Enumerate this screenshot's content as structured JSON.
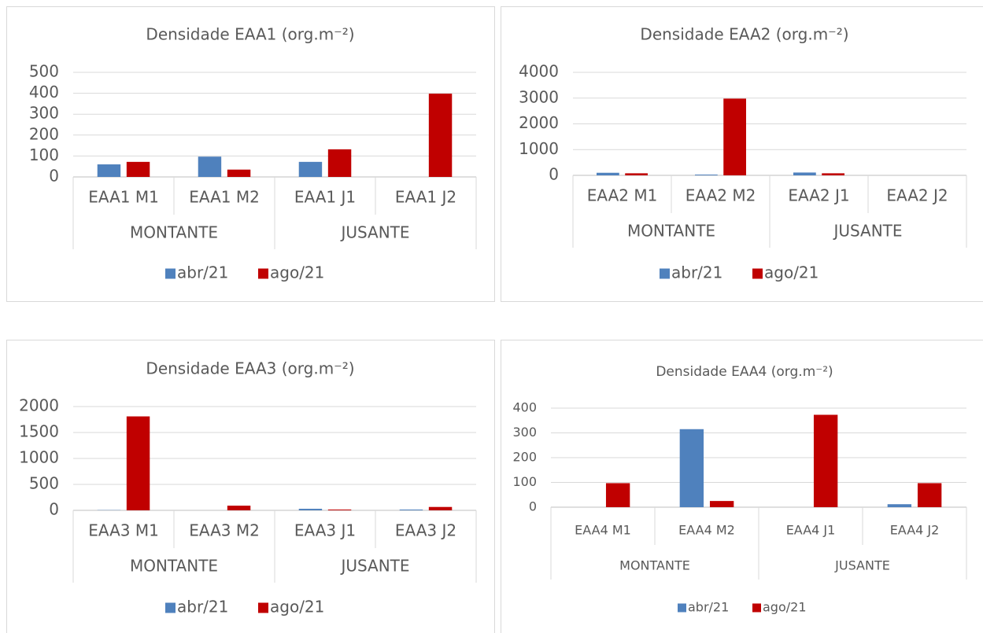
{
  "chart_data": [
    {
      "type": "bar",
      "title": "Densidade EAA1 (org.m⁻²)",
      "categories": [
        "EAA1 M1",
        "EAA1 M2",
        "EAA1 J1",
        "EAA1 J2"
      ],
      "groups": [
        "MONTANTE",
        "JUSANTE"
      ],
      "series": [
        {
          "name": "abr/21",
          "color": "#4f81bd",
          "values": [
            60,
            97,
            72,
            0
          ]
        },
        {
          "name": "ago/21",
          "color": "#c00000",
          "values": [
            72,
            35,
            132,
            398
          ]
        }
      ],
      "ylim": [
        0,
        500
      ],
      "yticks": [
        0,
        100,
        200,
        300,
        400,
        500
      ],
      "grid": true,
      "legend": "bottom"
    },
    {
      "type": "bar",
      "title": "Densidade EAA2 (org.m⁻²)",
      "categories": [
        "EAA2 M1",
        "EAA2 M2",
        "EAA2 J1",
        "EAA2 J2"
      ],
      "groups": [
        "MONTANTE",
        "JUSANTE"
      ],
      "series": [
        {
          "name": "abr/21",
          "color": "#4f81bd",
          "values": [
            100,
            30,
            110,
            0
          ]
        },
        {
          "name": "ago/21",
          "color": "#c00000",
          "values": [
            80,
            2980,
            80,
            0
          ]
        }
      ],
      "ylim": [
        0,
        4000
      ],
      "yticks": [
        0,
        1000,
        2000,
        3000,
        4000
      ],
      "grid": true,
      "legend": "bottom"
    },
    {
      "type": "bar",
      "title": "Densidade EAA3 (org.m⁻²)",
      "categories": [
        "EAA3 M1",
        "EAA3 M2",
        "EAA3 J1",
        "EAA3 J2"
      ],
      "groups": [
        "MONTANTE",
        "JUSANTE"
      ],
      "series": [
        {
          "name": "abr/21",
          "color": "#4f81bd",
          "values": [
            5,
            0,
            30,
            15
          ]
        },
        {
          "name": "ago/21",
          "color": "#c00000",
          "values": [
            1810,
            90,
            15,
            65
          ]
        }
      ],
      "ylim": [
        0,
        2000
      ],
      "yticks": [
        0,
        500,
        1000,
        1500,
        2000
      ],
      "grid": true,
      "legend": "bottom"
    },
    {
      "type": "bar",
      "title": "Densidade EAA4 (org.m⁻²)",
      "categories": [
        "EAA4 M1",
        "EAA4 M2",
        "EAA4 J1",
        "EAA4 J2"
      ],
      "groups": [
        "MONTANTE",
        "JUSANTE"
      ],
      "series": [
        {
          "name": "abr/21",
          "color": "#4f81bd",
          "values": [
            0,
            315,
            0,
            12
          ]
        },
        {
          "name": "ago/21",
          "color": "#c00000",
          "values": [
            97,
            25,
            373,
            97
          ]
        }
      ],
      "ylim": [
        0,
        400
      ],
      "yticks": [
        0,
        100,
        200,
        300,
        400
      ],
      "grid": true,
      "legend": "bottom"
    }
  ]
}
